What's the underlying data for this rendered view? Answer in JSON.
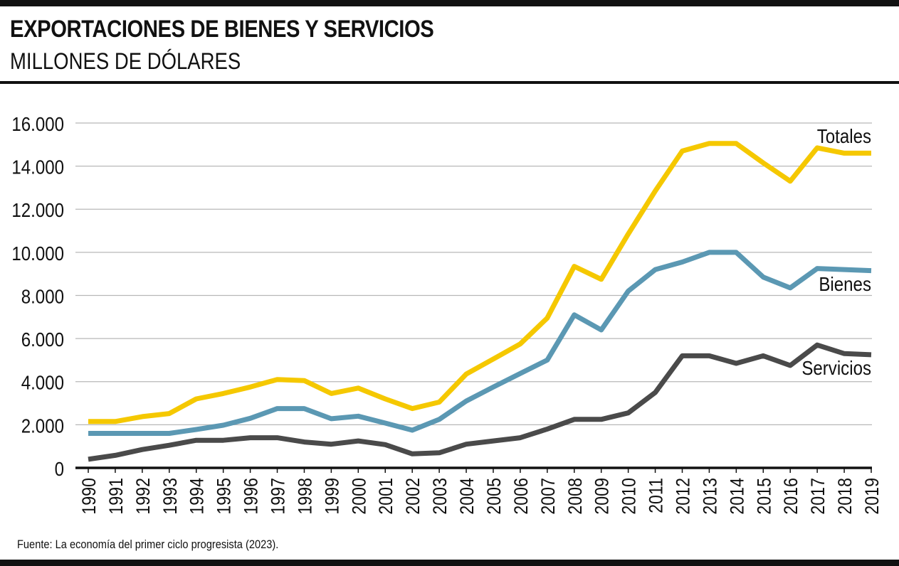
{
  "header": {
    "title": "EXPORTACIONES DE BIENES Y SERVICIOS",
    "subtitle": "MILLONES DE DÓLARES"
  },
  "footer": {
    "source": "Fuente: La economía del primer ciclo progresista (2023)."
  },
  "chart_data": {
    "type": "line",
    "title": "EXPORTACIONES DE BIENES Y SERVICIOS",
    "subtitle": "MILLONES DE DÓLARES",
    "xlabel": "",
    "ylabel": "",
    "ylim": [
      0,
      16000
    ],
    "yticks": [
      0,
      2000,
      4000,
      6000,
      8000,
      10000,
      12000,
      14000,
      16000
    ],
    "ytick_labels": [
      "0",
      "2.000",
      "4.000",
      "6.000",
      "8.000",
      "10.000",
      "12.000",
      "14.000",
      "16.000"
    ],
    "grid": "horizontal",
    "legend": "inline labels at right end of lines",
    "x": [
      "1990",
      "1991",
      "1992",
      "1993",
      "1994",
      "1995",
      "1996",
      "1997",
      "1998",
      "1999",
      "2000",
      "2001",
      "2002",
      "2003",
      "2004",
      "2005",
      "2006",
      "2007",
      "2008",
      "2009",
      "2010",
      "2011",
      "2012",
      "2013",
      "2014",
      "2015",
      "2016",
      "2017",
      "2018",
      "2019"
    ],
    "series": [
      {
        "name": "Totales",
        "color": "#F5C800",
        "values": [
          2150,
          2150,
          2380,
          2520,
          3200,
          3450,
          3750,
          4100,
          4050,
          3450,
          3700,
          3200,
          2750,
          3050,
          4350,
          5050,
          5750,
          6950,
          9350,
          8750,
          10850,
          12850,
          14700,
          15050,
          15050,
          14150,
          13300,
          14850,
          14600,
          14600
        ]
      },
      {
        "name": "Bienes",
        "color": "#5B98B3",
        "values": [
          1600,
          1600,
          1600,
          1600,
          1780,
          1980,
          2300,
          2750,
          2750,
          2280,
          2400,
          2080,
          1750,
          2250,
          3100,
          3750,
          4380,
          5000,
          7100,
          6400,
          8200,
          9200,
          9550,
          10000,
          10000,
          8850,
          8350,
          9250,
          9200,
          9150
        ]
      },
      {
        "name": "Servicios",
        "color": "#4A4A4A",
        "values": [
          400,
          580,
          850,
          1050,
          1280,
          1280,
          1400,
          1400,
          1200,
          1100,
          1250,
          1080,
          650,
          700,
          1100,
          1250,
          1400,
          1800,
          2250,
          2250,
          2550,
          3500,
          5200,
          5200,
          4850,
          5200,
          4750,
          5700,
          5300,
          5250
        ]
      }
    ]
  }
}
